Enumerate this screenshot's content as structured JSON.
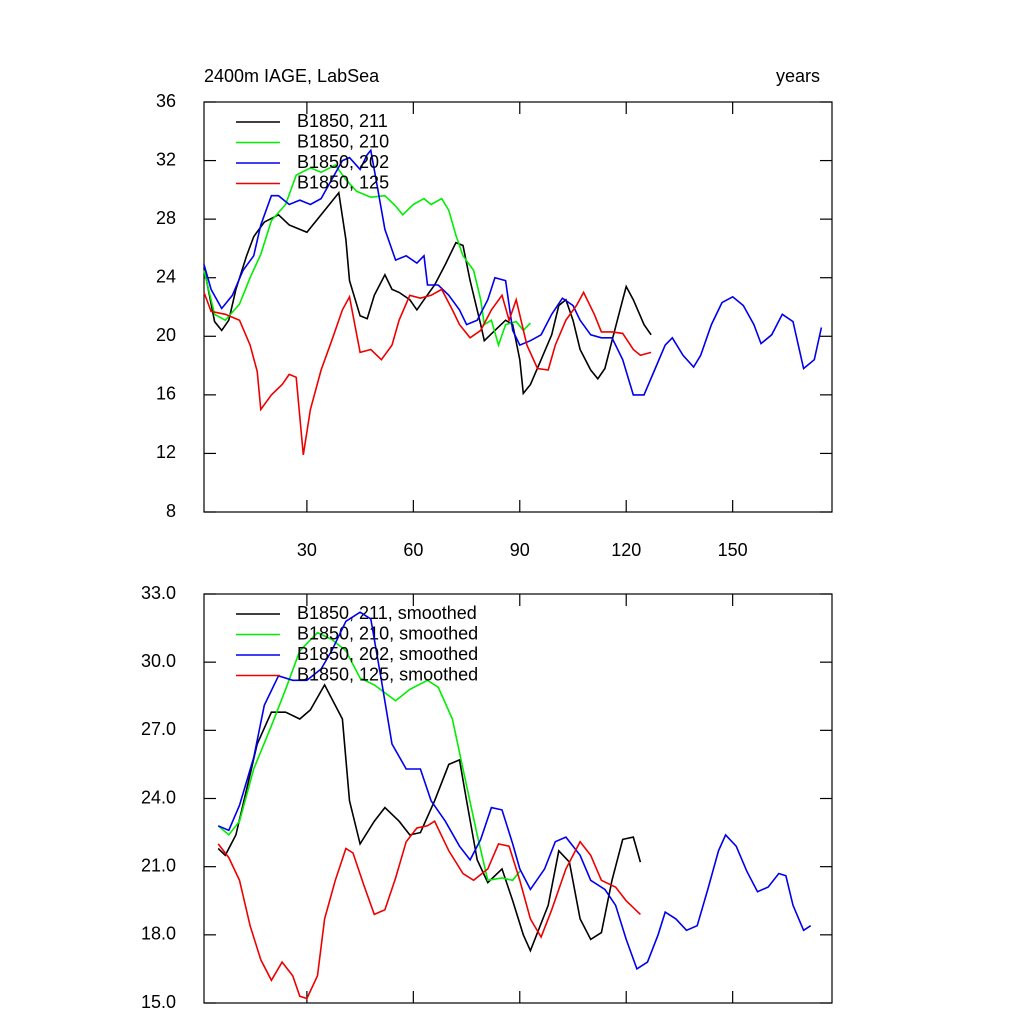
{
  "chart_data": [
    {
      "type": "line",
      "title": "2400m IAGE, LabSea",
      "x_label": "years",
      "xlim": [
        1,
        178
      ],
      "xticks": [
        30,
        60,
        90,
        120,
        150
      ],
      "show_xtick_labels": true,
      "ylim": [
        8,
        36
      ],
      "yticks": [
        8,
        12,
        16,
        20,
        24,
        28,
        32,
        36
      ],
      "legend": "upper left",
      "series": [
        {
          "name": "B1850, 211",
          "color": "#000000",
          "x": [
            1,
            4,
            6,
            8,
            10,
            13,
            15,
            18,
            22,
            25,
            30,
            34,
            39,
            41,
            42,
            45,
            47,
            49,
            52,
            54,
            56,
            59,
            61,
            63,
            66,
            69,
            72,
            74,
            76,
            79,
            80,
            83,
            86,
            88,
            90,
            91,
            93,
            96,
            99,
            101,
            103,
            105,
            107,
            110,
            112,
            114,
            116,
            119,
            120,
            122,
            125,
            127
          ],
          "values": [
            24.7,
            21.0,
            20.4,
            21.1,
            23.2,
            25.5,
            26.8,
            27.8,
            28.3,
            27.6,
            27.1,
            28.3,
            29.8,
            26.6,
            23.8,
            21.4,
            21.2,
            22.8,
            24.2,
            23.2,
            23.0,
            22.5,
            21.8,
            22.5,
            23.5,
            24.9,
            26.4,
            26.2,
            23.8,
            20.8,
            19.7,
            20.4,
            21.1,
            20.8,
            18.4,
            16.1,
            16.7,
            18.4,
            20.1,
            22.1,
            22.5,
            21.1,
            19.1,
            17.7,
            17.1,
            17.8,
            19.7,
            22.5,
            23.4,
            22.5,
            20.8,
            20.1
          ]
        },
        {
          "name": "B1850, 210",
          "color": "#00ee00",
          "x": [
            1,
            4,
            7,
            11,
            14,
            17,
            20,
            24,
            27,
            31,
            34,
            38,
            41,
            44,
            48,
            52,
            55,
            57,
            60,
            63,
            65,
            68,
            70,
            72,
            74,
            77,
            79,
            80,
            82,
            84,
            86,
            89,
            91,
            93
          ],
          "values": [
            24.5,
            21.5,
            21.1,
            22.2,
            24.0,
            25.6,
            27.9,
            29.0,
            31.0,
            31.5,
            31.2,
            31.7,
            30.7,
            29.9,
            29.5,
            29.6,
            28.9,
            28.3,
            29.0,
            29.4,
            29.0,
            29.4,
            28.6,
            26.9,
            25.5,
            24.5,
            22.5,
            20.8,
            21.1,
            19.4,
            20.8,
            21.0,
            20.4,
            20.9
          ]
        },
        {
          "name": "B1850, 202",
          "color": "#0000ee",
          "x": [
            1,
            3,
            6,
            9,
            12,
            15,
            17,
            20,
            22,
            25,
            28,
            31,
            34,
            37,
            40,
            42,
            45,
            47,
            48,
            50,
            52,
            55,
            58,
            61,
            63,
            64,
            67,
            70,
            73,
            75,
            78,
            81,
            83,
            86,
            88,
            90,
            93,
            96,
            99,
            102,
            105,
            107,
            110,
            113,
            116,
            119,
            122,
            125,
            128,
            131,
            133,
            136,
            139,
            141,
            144,
            147,
            150,
            153,
            156,
            158,
            161,
            164,
            167,
            170,
            173,
            175
          ],
          "values": [
            24.9,
            23.2,
            21.9,
            22.8,
            24.5,
            25.5,
            27.6,
            29.6,
            29.6,
            29.0,
            29.3,
            29.0,
            29.4,
            30.7,
            32.0,
            32.2,
            31.4,
            32.4,
            32.7,
            30.0,
            27.3,
            25.2,
            25.5,
            25.0,
            25.5,
            23.5,
            23.5,
            22.8,
            21.8,
            20.8,
            21.1,
            22.5,
            24.0,
            23.8,
            20.4,
            19.4,
            19.7,
            20.1,
            21.5,
            22.6,
            22.1,
            21.1,
            20.1,
            19.9,
            19.9,
            18.4,
            16.0,
            16.0,
            17.7,
            19.4,
            19.9,
            18.7,
            17.9,
            18.7,
            20.8,
            22.3,
            22.7,
            22.1,
            20.8,
            19.5,
            20.1,
            21.5,
            21.0,
            17.8,
            18.4,
            20.6
          ]
        },
        {
          "name": "B1850, 125",
          "color": "#ee0000",
          "x": [
            1,
            3,
            7,
            11,
            14,
            16,
            17,
            20,
            23,
            25,
            27,
            29,
            31,
            34,
            37,
            40,
            42,
            45,
            48,
            51,
            54,
            56,
            59,
            62,
            65,
            68,
            71,
            73,
            76,
            79,
            82,
            85,
            87,
            89,
            92,
            95,
            98,
            100,
            103,
            106,
            108,
            111,
            113,
            116,
            119,
            122,
            124,
            127
          ],
          "values": [
            23.0,
            21.7,
            21.5,
            21.1,
            19.4,
            17.6,
            15.0,
            16.0,
            16.7,
            17.4,
            17.2,
            11.9,
            15.0,
            17.7,
            19.7,
            21.8,
            22.7,
            18.9,
            19.1,
            18.4,
            19.4,
            21.1,
            22.8,
            22.6,
            22.8,
            23.2,
            21.8,
            20.8,
            19.9,
            20.4,
            21.8,
            22.8,
            21.1,
            22.5,
            19.4,
            17.8,
            17.7,
            19.4,
            21.1,
            22.1,
            23.0,
            21.5,
            20.3,
            20.3,
            20.2,
            19.1,
            18.7,
            18.9
          ]
        }
      ]
    },
    {
      "type": "line",
      "xlim": [
        1,
        178
      ],
      "xticks": [
        30,
        60,
        90,
        120,
        150
      ],
      "show_xtick_labels": false,
      "ylim": [
        15,
        33
      ],
      "yticks": [
        {
          "value": 15,
          "label": "15.0"
        },
        {
          "value": 18,
          "label": "18.0"
        },
        {
          "value": 21,
          "label": "21.0"
        },
        {
          "value": 24,
          "label": "24.0"
        },
        {
          "value": 27,
          "label": "27.0"
        },
        {
          "value": 30,
          "label": "30.0"
        },
        {
          "value": 33,
          "label": "33.0"
        }
      ],
      "legend": "upper left",
      "series": [
        {
          "name": "B1850, 211, smoothed",
          "color": "#000000",
          "x": [
            5,
            7,
            10,
            13,
            16,
            20,
            24,
            28,
            31,
            35,
            40,
            42,
            45,
            49,
            52,
            56,
            59,
            62,
            66,
            70,
            73,
            75,
            78,
            81,
            85,
            88,
            91,
            93,
            98,
            101,
            104,
            107,
            110,
            113,
            116,
            119,
            122,
            124
          ],
          "values": [
            21.8,
            21.5,
            22.4,
            24.4,
            26.4,
            27.8,
            27.8,
            27.5,
            27.9,
            29.0,
            27.5,
            23.9,
            22.0,
            23.0,
            23.6,
            23.0,
            22.4,
            22.5,
            23.9,
            25.5,
            25.7,
            23.9,
            21.3,
            20.3,
            20.9,
            19.5,
            18.0,
            17.3,
            19.3,
            21.7,
            21.2,
            18.7,
            17.8,
            18.1,
            20.4,
            22.2,
            22.3,
            21.2
          ]
        },
        {
          "name": "B1850, 210, smoothed",
          "color": "#00ee00",
          "x": [
            5,
            8,
            11,
            15,
            20,
            24,
            28,
            33,
            37,
            41,
            45,
            49,
            55,
            59,
            64,
            67,
            71,
            74,
            78,
            81,
            85,
            88,
            90
          ],
          "values": [
            22.8,
            22.4,
            23.0,
            25.3,
            27.2,
            28.8,
            30.5,
            31.3,
            31.0,
            30.5,
            29.3,
            29.0,
            28.3,
            28.8,
            29.2,
            28.9,
            27.5,
            25.3,
            22.4,
            20.4,
            20.5,
            20.4,
            20.8
          ]
        },
        {
          "name": "B1850, 202, smoothed",
          "color": "#0000ee",
          "x": [
            5,
            8,
            11,
            15,
            18,
            22,
            26,
            30,
            34,
            37,
            41,
            45,
            48,
            51,
            54,
            58,
            62,
            65,
            69,
            73,
            76,
            79,
            82,
            85,
            88,
            90,
            93,
            97,
            100,
            103,
            107,
            110,
            114,
            117,
            120,
            123,
            126,
            129,
            131,
            134,
            137,
            140,
            143,
            146,
            148,
            151,
            154,
            157,
            160,
            163,
            165,
            167,
            170,
            172
          ],
          "values": [
            22.8,
            22.6,
            23.7,
            25.8,
            28.1,
            29.4,
            29.2,
            29.2,
            29.7,
            30.5,
            31.8,
            32.2,
            31.9,
            29.2,
            26.4,
            25.3,
            25.3,
            23.9,
            23.0,
            21.9,
            21.3,
            22.2,
            23.6,
            23.5,
            22.0,
            20.9,
            20.0,
            20.9,
            22.1,
            22.3,
            21.5,
            20.4,
            20.0,
            19.3,
            17.8,
            16.5,
            16.8,
            18.0,
            19.0,
            18.7,
            18.2,
            18.4,
            20.0,
            21.7,
            22.4,
            21.9,
            20.8,
            19.9,
            20.1,
            20.7,
            20.6,
            19.3,
            18.2,
            18.4
          ]
        },
        {
          "name": "B1850, 125, smoothed",
          "color": "#ee0000",
          "x": [
            5,
            8,
            11,
            14,
            17,
            20,
            23,
            26,
            28,
            30,
            33,
            35,
            38,
            41,
            43,
            46,
            49,
            52,
            55,
            58,
            61,
            64,
            66,
            70,
            74,
            77,
            81,
            84,
            87,
            90,
            93,
            96,
            99,
            103,
            107,
            110,
            113,
            117,
            120,
            124
          ],
          "values": [
            22.0,
            21.4,
            20.4,
            18.4,
            16.9,
            16.0,
            16.8,
            16.2,
            15.3,
            15.2,
            16.2,
            18.7,
            20.4,
            21.8,
            21.6,
            20.2,
            18.9,
            19.1,
            20.5,
            22.1,
            22.7,
            22.8,
            23.0,
            21.7,
            20.7,
            20.4,
            20.9,
            22.0,
            21.9,
            20.4,
            18.7,
            17.9,
            19.1,
            20.9,
            22.1,
            21.5,
            20.4,
            20.1,
            19.5,
            18.9
          ]
        }
      ]
    }
  ]
}
